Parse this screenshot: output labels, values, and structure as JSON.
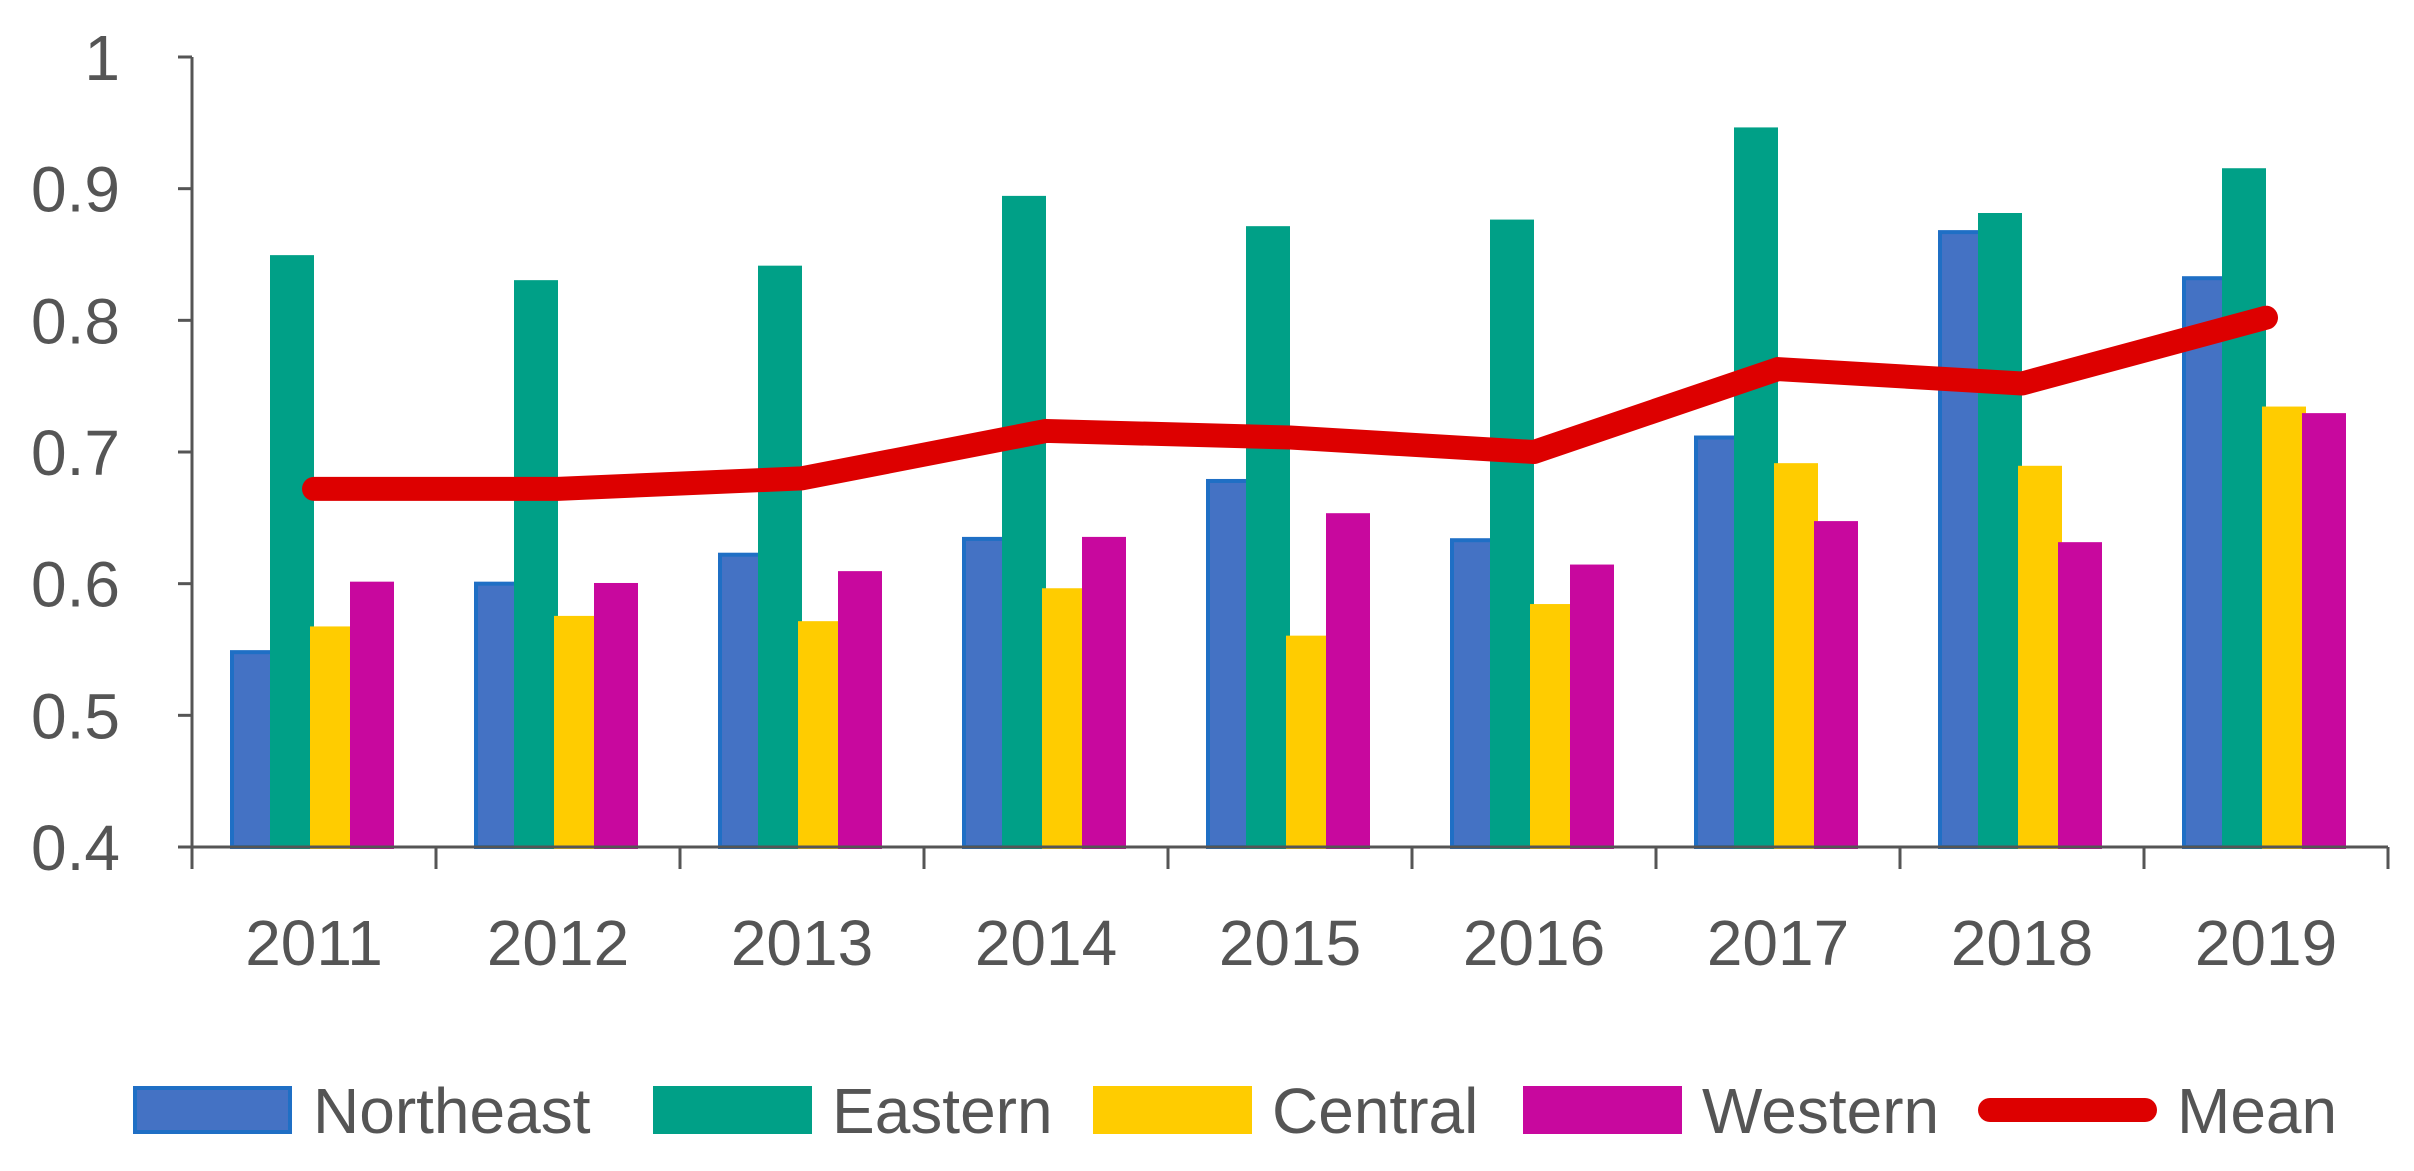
{
  "chart_data": {
    "type": "bar",
    "title": "",
    "xlabel": "",
    "ylabel": "",
    "ylim": [
      0.4,
      1.0
    ],
    "yticks": [
      "0.4",
      "0.5",
      "0.6",
      "0.7",
      "0.8",
      "0.9",
      "1"
    ],
    "grid": false,
    "legend_position": "bottom",
    "categories": [
      "2011",
      "2012",
      "2013",
      "2014",
      "2015",
      "2016",
      "2017",
      "2018",
      "2019"
    ],
    "series": [
      {
        "name": "Northeast",
        "kind": "bar",
        "color": "#4472C4",
        "stroke": "#1F6FC5",
        "values": [
          0.548,
          0.6,
          0.622,
          0.634,
          0.678,
          0.633,
          0.711,
          0.867,
          0.832
        ]
      },
      {
        "name": "Eastern",
        "kind": "bar",
        "color": "#00A087",
        "stroke": "#00A087",
        "values": [
          0.848,
          0.829,
          0.84,
          0.893,
          0.87,
          0.875,
          0.945,
          0.88,
          0.914
        ]
      },
      {
        "name": "Central",
        "kind": "bar",
        "color": "#FFCC00",
        "stroke": "#FFCC00",
        "values": [
          0.566,
          0.574,
          0.57,
          0.595,
          0.559,
          0.583,
          0.69,
          0.688,
          0.733
        ]
      },
      {
        "name": "Western",
        "kind": "bar",
        "color": "#C8089E",
        "stroke": "#C8089E",
        "values": [
          0.6,
          0.599,
          0.608,
          0.634,
          0.652,
          0.613,
          0.646,
          0.63,
          0.728
        ]
      },
      {
        "name": "Mean",
        "kind": "line",
        "color": "#DD0000",
        "stroke": "#DD0000",
        "values": [
          0.672,
          0.672,
          0.68,
          0.716,
          0.711,
          0.7,
          0.763,
          0.752,
          0.802
        ]
      }
    ]
  }
}
